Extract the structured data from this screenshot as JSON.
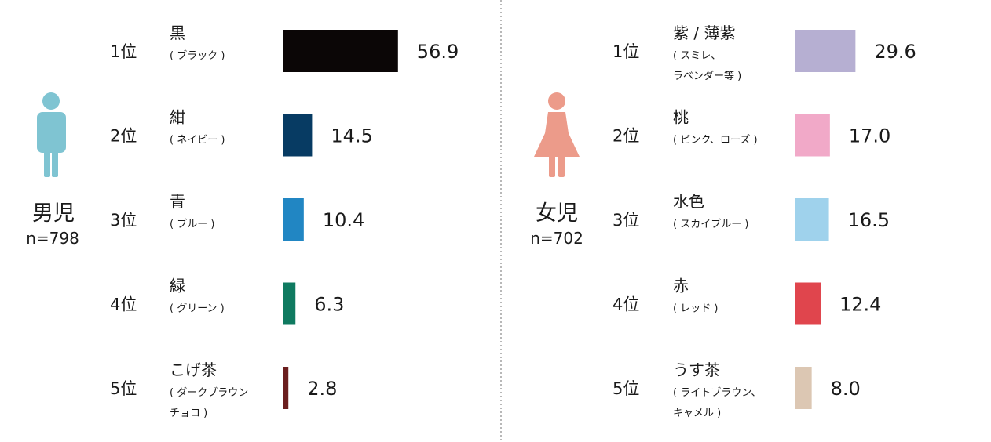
{
  "chart_data": [
    {
      "type": "bar",
      "group": "男児",
      "n_label": "n=798",
      "icon": "boy-icon",
      "icon_color": "#7fc4d2",
      "items": [
        {
          "rank": "1位",
          "name": "黒",
          "sub": [
            "( ブラック )"
          ],
          "value": 56.9,
          "value_label": "56.9",
          "color": "#0b0606"
        },
        {
          "rank": "2位",
          "name": "紺",
          "sub": [
            "( ネイビー )"
          ],
          "value": 14.5,
          "value_label": "14.5",
          "color": "#073b63"
        },
        {
          "rank": "3位",
          "name": "青",
          "sub": [
            "( ブルー )"
          ],
          "value": 10.4,
          "value_label": "10.4",
          "color": "#2186c3"
        },
        {
          "rank": "4位",
          "name": "緑",
          "sub": [
            "( グリーン )"
          ],
          "value": 6.3,
          "value_label": "6.3",
          "color": "#0f7a60"
        },
        {
          "rank": "5位",
          "name": "こげ茶",
          "sub": [
            "( ダークブラウン",
            "チョコ )"
          ],
          "value": 2.8,
          "value_label": "2.8",
          "color": "#6b1e1e"
        }
      ]
    },
    {
      "type": "bar",
      "group": "女児",
      "n_label": "n=702",
      "icon": "girl-icon",
      "icon_color": "#ec9b8a",
      "items": [
        {
          "rank": "1位",
          "name": "紫 / 薄紫",
          "sub": [
            "( スミレ、",
            "ラベンダー等 )"
          ],
          "value": 29.6,
          "value_label": "29.6",
          "color": "#b6afd2"
        },
        {
          "rank": "2位",
          "name": "桃",
          "sub": [
            "( ピンク、ローズ )"
          ],
          "value": 17.0,
          "value_label": "17.0",
          "color": "#f1a9c8"
        },
        {
          "rank": "3位",
          "name": "水色",
          "sub": [
            "( スカイブルー )"
          ],
          "value": 16.5,
          "value_label": "16.5",
          "color": "#9fd2ec"
        },
        {
          "rank": "4位",
          "name": "赤",
          "sub": [
            "( レッド )"
          ],
          "value": 12.4,
          "value_label": "12.4",
          "color": "#e0454d"
        },
        {
          "rank": "5位",
          "name": "うす茶",
          "sub": [
            "( ライトブラウン、",
            "キャメル )"
          ],
          "value": 8.0,
          "value_label": "8.0",
          "color": "#dcc7b3"
        }
      ]
    }
  ]
}
